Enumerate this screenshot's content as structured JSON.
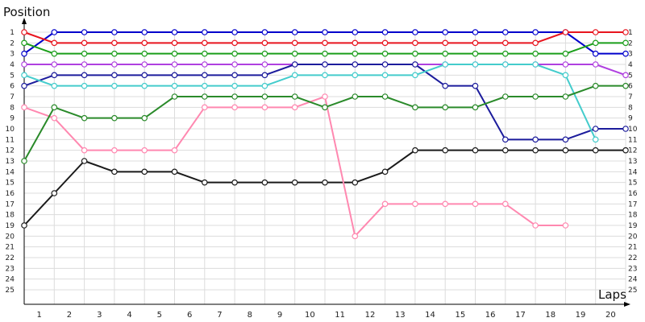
{
  "chart_data": {
    "type": "line",
    "title": "",
    "ylabel": "Position",
    "xlabel": "Laps",
    "x": [
      0,
      1,
      2,
      3,
      4,
      5,
      6,
      7,
      8,
      9,
      10,
      11,
      12,
      13,
      14,
      15,
      16,
      17,
      18,
      19,
      20
    ],
    "xlim": [
      0,
      20
    ],
    "ylim": [
      1,
      25
    ],
    "y_inverted": true,
    "grid": true,
    "x_ticks": [
      "1",
      "2",
      "3",
      "4",
      "5",
      "6",
      "7",
      "8",
      "9",
      "10",
      "11",
      "12",
      "13",
      "14",
      "15",
      "16",
      "17",
      "18",
      "19",
      "20"
    ],
    "y_ticks": [
      "1",
      "2",
      "3",
      "4",
      "5",
      "6",
      "7",
      "8",
      "9",
      "10",
      "11",
      "12",
      "13",
      "14",
      "15",
      "16",
      "17",
      "18",
      "19",
      "20",
      "21",
      "22",
      "23",
      "24",
      "25"
    ],
    "series": [
      {
        "color": "#0000cc",
        "values": [
          3,
          1,
          1,
          1,
          1,
          1,
          1,
          1,
          1,
          1,
          1,
          1,
          1,
          1,
          1,
          1,
          1,
          1,
          1,
          3,
          3
        ]
      },
      {
        "color": "#e8141e",
        "values": [
          1,
          2,
          2,
          2,
          2,
          2,
          2,
          2,
          2,
          2,
          2,
          2,
          2,
          2,
          2,
          2,
          2,
          2,
          1,
          1,
          1
        ]
      },
      {
        "color": "#1a9e1a",
        "values": [
          2,
          3,
          3,
          3,
          3,
          3,
          3,
          3,
          3,
          3,
          3,
          3,
          3,
          3,
          3,
          3,
          3,
          3,
          3,
          2,
          2
        ]
      },
      {
        "color": "#b040e0",
        "values": [
          4,
          4,
          4,
          4,
          4,
          4,
          4,
          4,
          4,
          4,
          4,
          4,
          4,
          4,
          4,
          4,
          4,
          4,
          4,
          4,
          5
        ]
      },
      {
        "color": "#1c1c9c",
        "values": [
          6,
          5,
          5,
          5,
          5,
          5,
          5,
          5,
          5,
          4,
          4,
          4,
          4,
          4,
          6,
          6,
          11,
          11,
          11,
          10,
          10
        ]
      },
      {
        "color": "#44cccc",
        "values": [
          5,
          6,
          6,
          6,
          6,
          6,
          6,
          6,
          6,
          5,
          5,
          5,
          5,
          5,
          4,
          4,
          4,
          4,
          5,
          11,
          null
        ]
      },
      {
        "color": "#1a1a1a",
        "values": [
          19,
          16,
          13,
          14,
          14,
          14,
          15,
          15,
          15,
          15,
          15,
          15,
          14,
          12,
          12,
          12,
          12,
          12,
          12,
          12,
          12
        ]
      },
      {
        "color": "#ff88b0",
        "values": [
          8,
          9,
          12,
          12,
          12,
          12,
          8,
          8,
          8,
          8,
          7,
          20,
          17,
          17,
          17,
          17,
          17,
          19,
          19,
          null,
          null
        ]
      },
      {
        "color": "#2a8a2a",
        "values": [
          13,
          8,
          9,
          9,
          9,
          7,
          7,
          7,
          7,
          7,
          8,
          7,
          7,
          8,
          8,
          8,
          7,
          7,
          7,
          6,
          6
        ]
      }
    ],
    "point_fill": "#ffffff",
    "highlight_fill": "#f2e600"
  }
}
